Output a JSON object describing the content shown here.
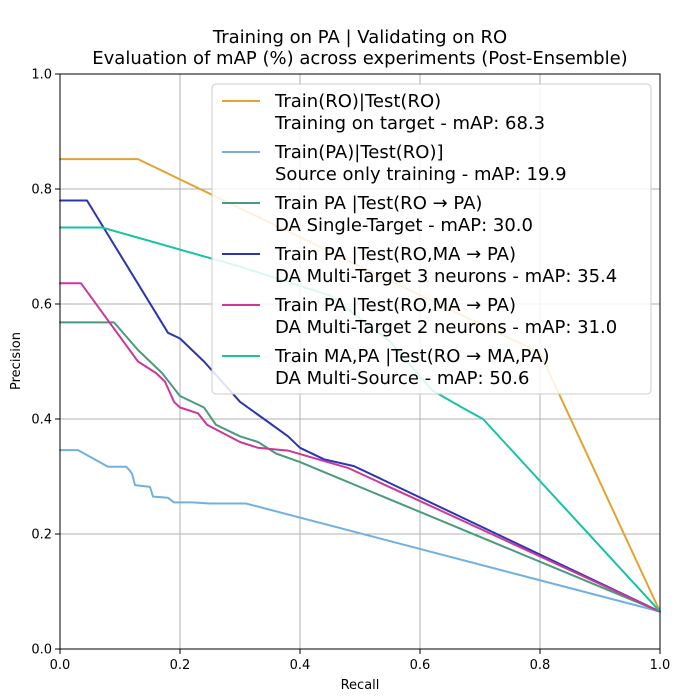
{
  "chart_data": {
    "type": "line",
    "title": "Training on PA | Validating on RO",
    "subtitle": "Evaluation of mAP (%) across experiments (Post-Ensemble)",
    "xlabel": "Recall",
    "ylabel": "Precision",
    "xlim": [
      0,
      1
    ],
    "ylim": [
      0,
      1
    ],
    "xticks": [
      "0.0",
      "0.2",
      "0.4",
      "0.6",
      "0.8",
      "1.0"
    ],
    "yticks": [
      "0.0",
      "0.2",
      "0.4",
      "0.6",
      "0.8",
      "1.0"
    ],
    "grid": true,
    "legend_position": "top-right",
    "series": [
      {
        "name": "Train(RO)|Test(RO)",
        "name_line2": "Training on target - mAP: 68.3",
        "color": "#E1A432",
        "x": [
          0,
          0.13,
          0.8,
          1.0
        ],
        "y": [
          0.852,
          0.852,
          0.515,
          0.065
        ]
      },
      {
        "name": "Train(PA)|Test(RO)]",
        "name_line2": "Source only training - mAP: 19.9",
        "color": "#72B0E2",
        "x": [
          0,
          0.03,
          0.08,
          0.11,
          0.115,
          0.12,
          0.125,
          0.15,
          0.155,
          0.18,
          0.19,
          0.22,
          0.25,
          0.31,
          1.0
        ],
        "y": [
          0.346,
          0.346,
          0.317,
          0.317,
          0.312,
          0.305,
          0.285,
          0.282,
          0.265,
          0.263,
          0.255,
          0.255,
          0.253,
          0.253,
          0.065
        ]
      },
      {
        "name": "Train PA |Test(RO → PA)",
        "name_line2": "DA Single-Target - mAP: 30.0",
        "color": "#4A9B7A",
        "x": [
          0,
          0.09,
          0.13,
          0.17,
          0.2,
          0.24,
          0.26,
          0.3,
          0.33,
          0.36,
          0.4,
          1.0
        ],
        "y": [
          0.568,
          0.568,
          0.52,
          0.48,
          0.44,
          0.42,
          0.39,
          0.37,
          0.36,
          0.34,
          0.325,
          0.065
        ]
      },
      {
        "name": "Train PA |Test(RO,MA → PA)",
        "name_line2": "DA Multi-Target 3 neurons - mAP: 35.4",
        "color": "#2B35B0",
        "x": [
          0,
          0.045,
          0.18,
          0.2,
          0.24,
          0.3,
          0.34,
          0.38,
          0.4,
          0.44,
          0.49,
          1.0
        ],
        "y": [
          0.78,
          0.78,
          0.55,
          0.54,
          0.5,
          0.43,
          0.4,
          0.37,
          0.35,
          0.33,
          0.318,
          0.065
        ]
      },
      {
        "name": "Train PA |Test(RO,MA → PA)",
        "name_line2": "DA Multi-Target 2 neurons - mAP: 31.0",
        "color": "#CC3799",
        "x": [
          0,
          0.035,
          0.13,
          0.16,
          0.175,
          0.19,
          0.2,
          0.23,
          0.245,
          0.3,
          0.33,
          0.38,
          0.48,
          1.0
        ],
        "y": [
          0.636,
          0.636,
          0.5,
          0.48,
          0.465,
          0.43,
          0.42,
          0.41,
          0.39,
          0.36,
          0.35,
          0.345,
          0.315,
          0.065
        ]
      },
      {
        "name": "Train MA,PA |Test(RO → MA,PA)",
        "name_line2": "DA Multi-Source - mAP: 50.6",
        "color": "#17C3A3",
        "x": [
          0,
          0.07,
          0.3,
          0.45,
          0.55,
          0.62,
          0.67,
          0.705,
          1.0
        ],
        "y": [
          0.733,
          0.733,
          0.665,
          0.615,
          0.535,
          0.45,
          0.42,
          0.4,
          0.065
        ]
      }
    ]
  }
}
